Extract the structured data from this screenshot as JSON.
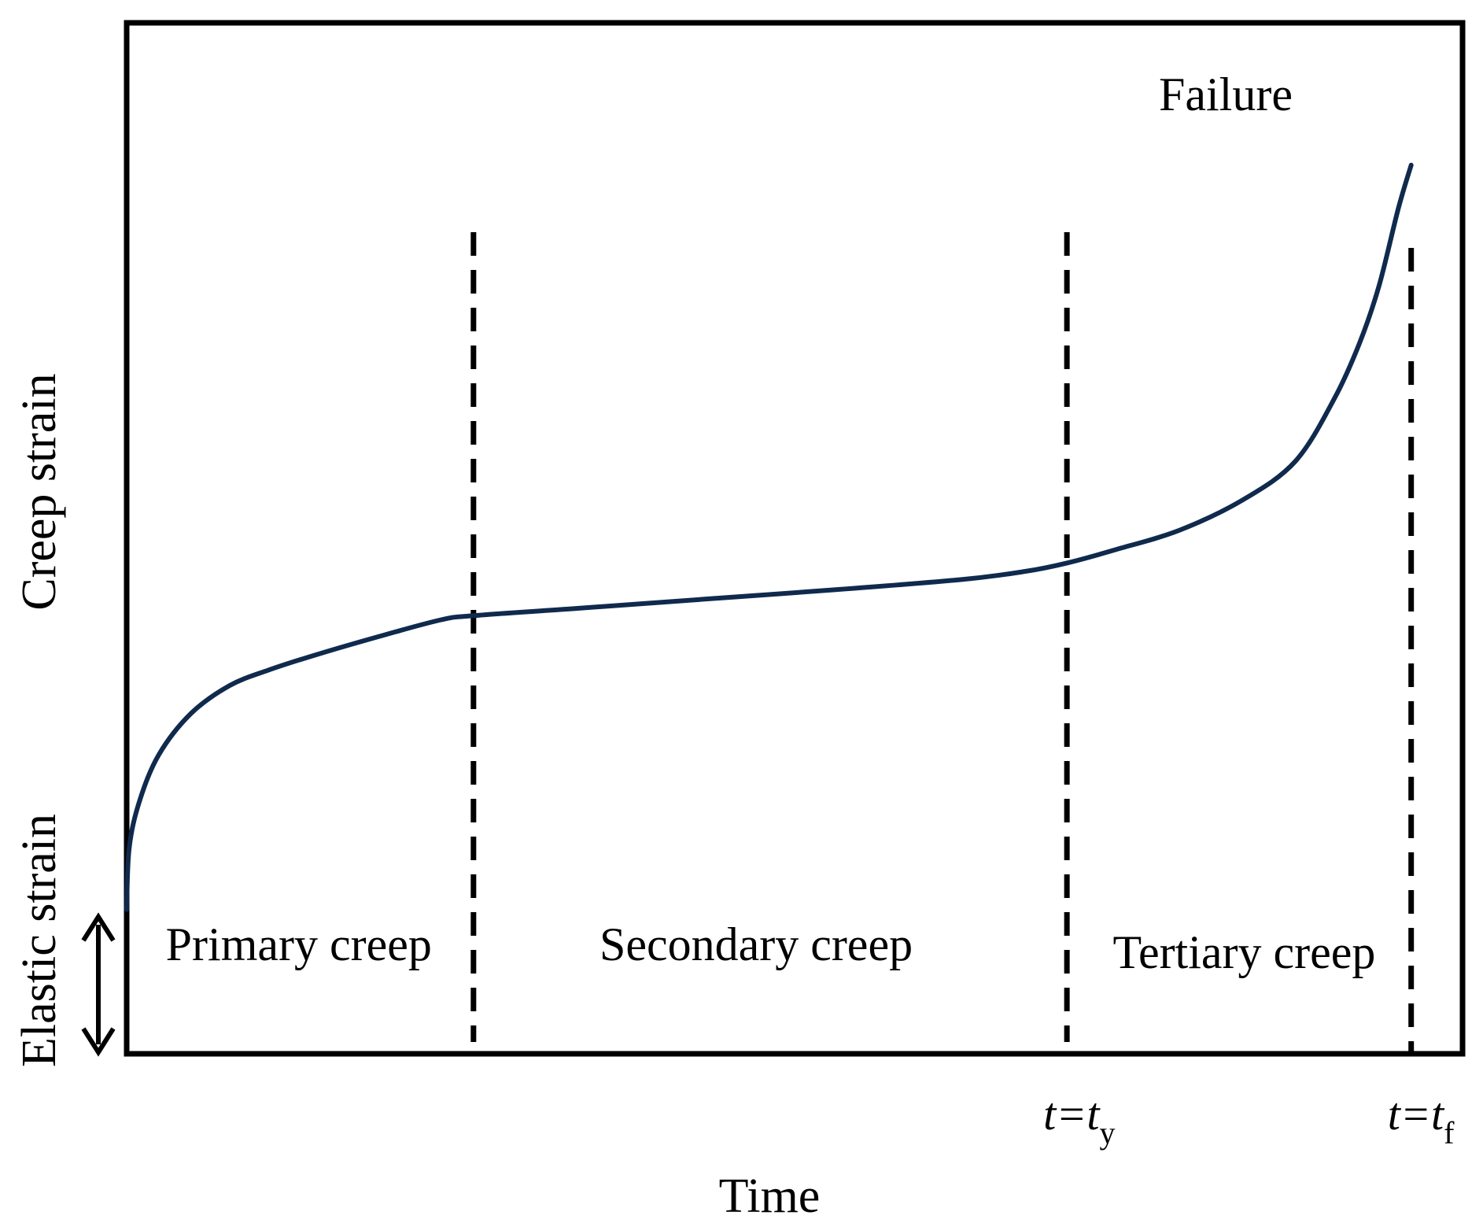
{
  "chart_data": {
    "type": "line",
    "title": "",
    "xlabel": "Time",
    "ylabel": "Creep strain",
    "elastic_label": "Elastic strain",
    "failure_label": "Failure",
    "ticks": [
      {
        "base": "t=t",
        "sub": "y",
        "x": 0.732
      },
      {
        "base": "t=t",
        "sub": "f",
        "x": 1.0
      }
    ],
    "stage_boundaries": [
      0.27,
      0.732,
      1.0
    ],
    "stages": [
      {
        "label": "Primary creep",
        "x_center": 0.134
      },
      {
        "label": "Secondary creep",
        "x_center": 0.49
      },
      {
        "label": "Tertiary creep",
        "x_center": 0.87
      }
    ],
    "xlim": [
      0,
      1.04
    ],
    "ylim": [
      0,
      1
    ],
    "elastic_strain": 0.14,
    "series": [
      {
        "color": "#0f2a4d",
        "x": [
          0,
          0.002,
          0.01,
          0.025,
          0.05,
          0.08,
          0.11,
          0.15,
          0.2,
          0.245,
          0.27,
          0.35,
          0.45,
          0.55,
          0.65,
          0.7,
          0.732,
          0.77,
          0.82,
          0.87,
          0.91,
          0.94,
          0.96,
          0.975,
          0.99,
          1.0
        ],
        "y": [
          0.14,
          0.2,
          0.245,
          0.29,
          0.33,
          0.357,
          0.372,
          0.388,
          0.406,
          0.421,
          0.425,
          0.432,
          0.441,
          0.45,
          0.46,
          0.468,
          0.476,
          0.489,
          0.508,
          0.538,
          0.575,
          0.635,
          0.69,
          0.745,
          0.82,
          0.862
        ]
      }
    ],
    "grid": false,
    "legend": "none"
  }
}
